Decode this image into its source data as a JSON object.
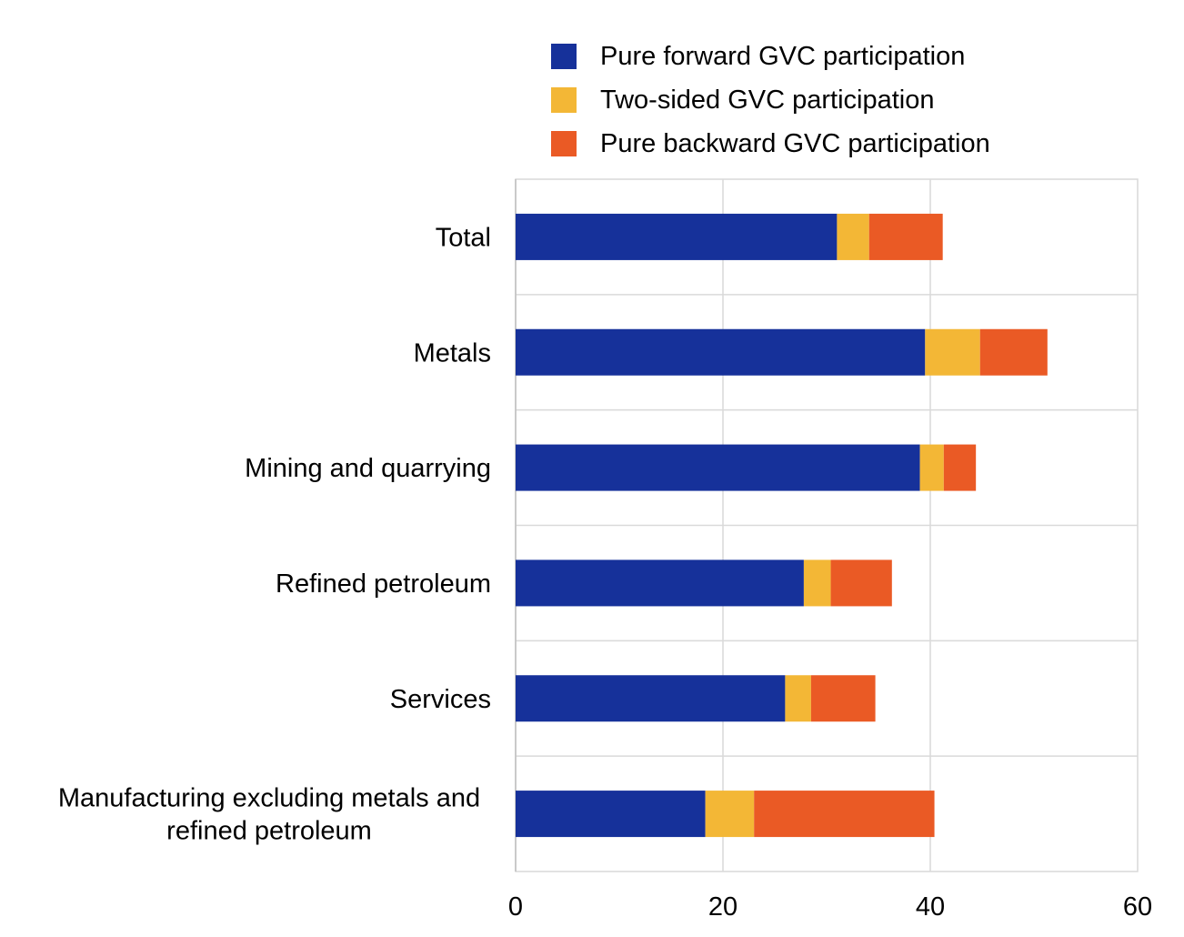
{
  "chart_data": {
    "type": "bar",
    "orientation": "horizontal",
    "stacked": true,
    "categories": [
      "Total",
      "Metals",
      "Mining and quarrying",
      "Refined petroleum",
      "Services",
      "Manufacturing excluding metals and refined petroleum"
    ],
    "category_label_lines": [
      [
        "Total"
      ],
      [
        "Metals"
      ],
      [
        "Mining and quarrying"
      ],
      [
        "Refined petroleum"
      ],
      [
        "Services"
      ],
      [
        "Manufacturing excluding metals and",
        "refined petroleum"
      ]
    ],
    "series": [
      {
        "name": "Pure forward GVC participation",
        "color": "#16319A",
        "values": [
          31.0,
          39.5,
          39.0,
          27.8,
          26.0,
          18.3
        ]
      },
      {
        "name": "Two-sided GVC participation",
        "color": "#F3B736",
        "values": [
          3.1,
          5.3,
          2.3,
          2.6,
          2.5,
          4.7
        ]
      },
      {
        "name": "Pure backward GVC participation",
        "color": "#EA5A25",
        "values": [
          7.1,
          6.5,
          3.1,
          5.9,
          6.2,
          17.4
        ]
      }
    ],
    "xlim": [
      0,
      60
    ],
    "xticks": [
      0,
      20,
      40,
      60
    ],
    "title": "",
    "xlabel": "",
    "ylabel": "",
    "grid": true,
    "legend_position": "top"
  }
}
